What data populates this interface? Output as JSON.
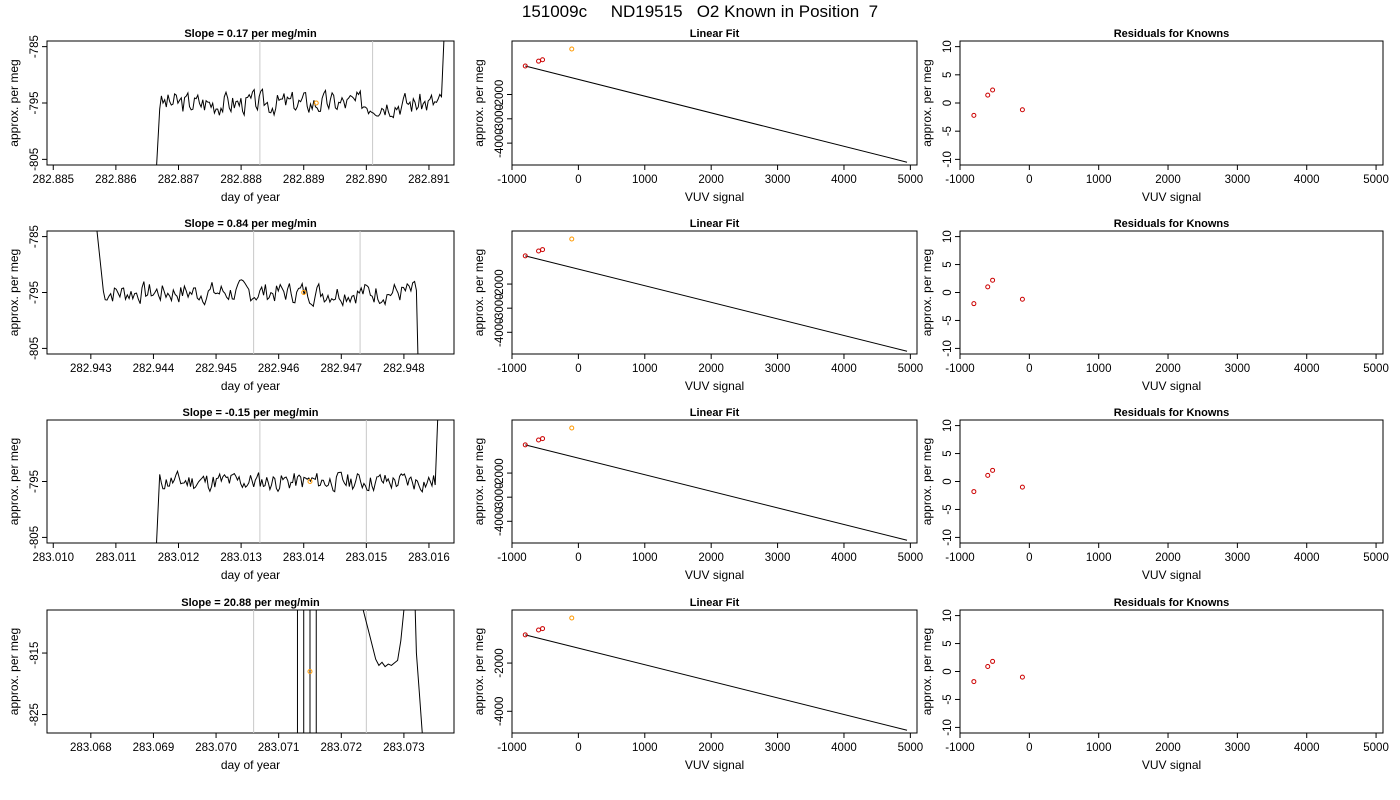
{
  "figure": {
    "title": "151009c     ND19515   O2 Known in Position  7"
  },
  "chart_data": [
    {
      "type": "line",
      "row": 1,
      "col": 1,
      "title": "Slope =  0.17  per meg/min",
      "xlabel": "day of year",
      "ylabel": "approx. per meg",
      "xlim": [
        282.8849,
        282.8914
      ],
      "ylim": [
        -806,
        -784
      ],
      "xticks": [
        "282.885",
        "282.886",
        "282.887",
        "282.888",
        "282.889",
        "282.890",
        "282.891"
      ],
      "yticks": [
        "-785",
        "-795",
        "-805"
      ],
      "vlines": [
        282.8883,
        282.8901
      ],
      "point": {
        "x": 282.8892,
        "y": -795
      },
      "trace": {
        "x_start": 282.8867,
        "x_end": 282.8912,
        "level": -795,
        "noise": 1.8,
        "seed": 3,
        "ramp_in": true,
        "ramp_out": "up"
      }
    },
    {
      "type": "scatter",
      "row": 1,
      "col": 2,
      "title": "Linear Fit",
      "xlabel": "VUV signal",
      "ylabel": "approx. per meg",
      "xlim": [
        -1000,
        5100
      ],
      "ylim": [
        -4900,
        200
      ],
      "xticks": [
        "-1000",
        "0",
        "1000",
        "2000",
        "3000",
        "4000",
        "5000"
      ],
      "yticks": [
        "-2000",
        "-3000",
        "-4000"
      ],
      "knowns": {
        "x": [
          -800,
          -600,
          -540
        ],
        "y": [
          -830,
          -630,
          -570
        ]
      },
      "unknown": {
        "x": -100,
        "y": -130
      },
      "fit_line": {
        "x": [
          -800,
          4950
        ],
        "y": [
          -830,
          -4785
        ]
      }
    },
    {
      "type": "scatter",
      "row": 1,
      "col": 3,
      "title": "Residuals for Knowns",
      "xlabel": "VUV signal",
      "ylabel": "approx. per meg",
      "xlim": [
        -1000,
        5100
      ],
      "ylim": [
        -11,
        11
      ],
      "xticks": [
        "-1000",
        "0",
        "1000",
        "2000",
        "3000",
        "4000",
        "5000"
      ],
      "yticks": [
        "10",
        "5",
        "0",
        "-5",
        "-10"
      ],
      "residuals": {
        "x": [
          -800,
          -600,
          -530,
          -100
        ],
        "y": [
          -2.2,
          1.4,
          2.3,
          -1.2
        ]
      }
    },
    {
      "type": "line",
      "row": 2,
      "col": 1,
      "title": "Slope =  0.84  per meg/min",
      "xlabel": "day of year",
      "ylabel": "approx. per meg",
      "xlim": [
        282.9423,
        282.9488
      ],
      "ylim": [
        -806,
        -784
      ],
      "xticks": [
        "282.943",
        "282.944",
        "282.945",
        "282.946",
        "282.947",
        "282.948"
      ],
      "yticks": [
        "-785",
        "-795",
        "-805"
      ],
      "vlines": [
        282.9456,
        282.9473
      ],
      "point": {
        "x": 282.9464,
        "y": -795
      },
      "trace": {
        "x_start": 282.9432,
        "x_end": 282.9482,
        "level": -795,
        "noise": 1.7,
        "seed": 7,
        "ramp_in": "down",
        "ramp_out": "down"
      }
    },
    {
      "type": "scatter",
      "row": 2,
      "col": 2,
      "title": "Linear Fit",
      "xlabel": "VUV signal",
      "ylabel": "approx. per meg",
      "xlim": [
        -1000,
        5100
      ],
      "ylim": [
        -4900,
        200
      ],
      "xticks": [
        "-1000",
        "0",
        "1000",
        "2000",
        "3000",
        "4000",
        "5000"
      ],
      "yticks": [
        "-2000",
        "-3000",
        "-4000"
      ],
      "knowns": {
        "x": [
          -800,
          -600,
          -540
        ],
        "y": [
          -830,
          -630,
          -570
        ]
      },
      "unknown": {
        "x": -100,
        "y": -130
      },
      "fit_line": {
        "x": [
          -800,
          4950
        ],
        "y": [
          -830,
          -4785
        ]
      }
    },
    {
      "type": "scatter",
      "row": 2,
      "col": 3,
      "title": "Residuals for Knowns",
      "xlabel": "VUV signal",
      "ylabel": "approx. per meg",
      "xlim": [
        -1000,
        5100
      ],
      "ylim": [
        -11,
        11
      ],
      "xticks": [
        "-1000",
        "0",
        "1000",
        "2000",
        "3000",
        "4000",
        "5000"
      ],
      "yticks": [
        "10",
        "5",
        "0",
        "-5",
        "-10"
      ],
      "residuals": {
        "x": [
          -800,
          -600,
          -530,
          -100
        ],
        "y": [
          -2.0,
          1.0,
          2.2,
          -1.2
        ]
      }
    },
    {
      "type": "line",
      "row": 3,
      "col": 1,
      "title": "Slope =  -0.15  per meg/min",
      "xlabel": "day of year",
      "ylabel": "approx. per meg",
      "xlim": [
        283.0099,
        283.0164
      ],
      "ylim": [
        -806,
        -784
      ],
      "xticks": [
        "283.010",
        "283.011",
        "283.012",
        "283.013",
        "283.014",
        "283.015",
        "283.016"
      ],
      "yticks": [
        "-795",
        "-805"
      ],
      "vlines": [
        283.0133,
        283.015
      ],
      "point": {
        "x": 283.0141,
        "y": -795
      },
      "trace": {
        "x_start": 283.0117,
        "x_end": 283.0161,
        "level": -795,
        "noise": 1.5,
        "seed": 11,
        "ramp_in": true,
        "ramp_out": "up"
      }
    },
    {
      "type": "scatter",
      "row": 3,
      "col": 2,
      "title": "Linear Fit",
      "xlabel": "VUV signal",
      "ylabel": "approx. per meg",
      "xlim": [
        -1000,
        5100
      ],
      "ylim": [
        -4900,
        200
      ],
      "xticks": [
        "-1000",
        "0",
        "1000",
        "2000",
        "3000",
        "4000",
        "5000"
      ],
      "yticks": [
        "-2000",
        "-3000",
        "-4000"
      ],
      "knowns": {
        "x": [
          -800,
          -600,
          -540
        ],
        "y": [
          -830,
          -630,
          -570
        ]
      },
      "unknown": {
        "x": -100,
        "y": -130
      },
      "fit_line": {
        "x": [
          -800,
          4950
        ],
        "y": [
          -830,
          -4785
        ]
      }
    },
    {
      "type": "scatter",
      "row": 3,
      "col": 3,
      "title": "Residuals for Knowns",
      "xlabel": "VUV signal",
      "ylabel": "approx. per meg",
      "xlim": [
        -1000,
        5100
      ],
      "ylim": [
        -11,
        11
      ],
      "xticks": [
        "-1000",
        "0",
        "1000",
        "2000",
        "3000",
        "4000",
        "5000"
      ],
      "yticks": [
        "10",
        "5",
        "0",
        "-5",
        "-10"
      ],
      "residuals": {
        "x": [
          -800,
          -600,
          -530,
          -100
        ],
        "y": [
          -1.8,
          1.1,
          2.0,
          -1.0
        ]
      }
    },
    {
      "type": "line",
      "row": 4,
      "col": 1,
      "title": "Slope =  20.88  per meg/min",
      "xlabel": "day of year",
      "ylabel": "approx. per meg",
      "xlim": [
        283.0673,
        283.0738
      ],
      "ylim": [
        -828,
        -808
      ],
      "xticks": [
        "283.068",
        "283.069",
        "283.070",
        "283.071",
        "283.072",
        "283.073"
      ],
      "yticks": [
        "-815",
        "-825"
      ],
      "vlines": [
        283.0706,
        283.0724
      ],
      "point": {
        "x": 283.0715,
        "y": -818
      },
      "spikes": [
        283.0713,
        283.0714,
        283.0715,
        283.0716
      ],
      "segment": {
        "x": [
          283.07235,
          283.07245,
          283.07255,
          283.0726,
          283.07265,
          283.0727,
          283.07275,
          283.0728,
          283.07285,
          283.0729,
          283.07295,
          283.073
        ],
        "y": [
          -808,
          -812,
          -816,
          -817,
          -816.5,
          -817.2,
          -816.8,
          -817.0,
          -816.6,
          -816.2,
          -813,
          -808
        ]
      },
      "tail": {
        "x": [
          283.07318,
          283.0732,
          283.07325,
          283.0733
        ],
        "y": [
          -808,
          -815,
          -822,
          -829
        ]
      }
    },
    {
      "type": "scatter",
      "row": 4,
      "col": 2,
      "title": "Linear Fit",
      "xlabel": "VUV signal",
      "ylabel": "approx. per meg",
      "xlim": [
        -1000,
        5100
      ],
      "ylim": [
        -4900,
        200
      ],
      "xticks": [
        "-1000",
        "0",
        "1000",
        "2000",
        "3000",
        "4000",
        "5000"
      ],
      "yticks": [
        "-2000",
        "-4000"
      ],
      "knowns": {
        "x": [
          -800,
          -600,
          -540
        ],
        "y": [
          -830,
          -630,
          -570
        ]
      },
      "unknown": {
        "x": -100,
        "y": -130
      },
      "fit_line": {
        "x": [
          -800,
          4950
        ],
        "y": [
          -830,
          -4785
        ]
      }
    },
    {
      "type": "scatter",
      "row": 4,
      "col": 3,
      "title": "Residuals for Knowns",
      "xlabel": "VUV signal",
      "ylabel": "approx. per meg",
      "xlim": [
        -1000,
        5100
      ],
      "ylim": [
        -11,
        11
      ],
      "xticks": [
        "-1000",
        "0",
        "1000",
        "2000",
        "3000",
        "4000",
        "5000"
      ],
      "yticks": [
        "10",
        "5",
        "0",
        "-5",
        "-10"
      ],
      "residuals": {
        "x": [
          -800,
          -600,
          -530,
          -100
        ],
        "y": [
          -1.8,
          0.9,
          1.8,
          -1.0
        ]
      }
    }
  ],
  "colors": {
    "known_points": "#cc0000",
    "unknown_point": "#ff9900",
    "vline": "#c8c8c8",
    "trace": "#000000",
    "frame": "#000000"
  }
}
